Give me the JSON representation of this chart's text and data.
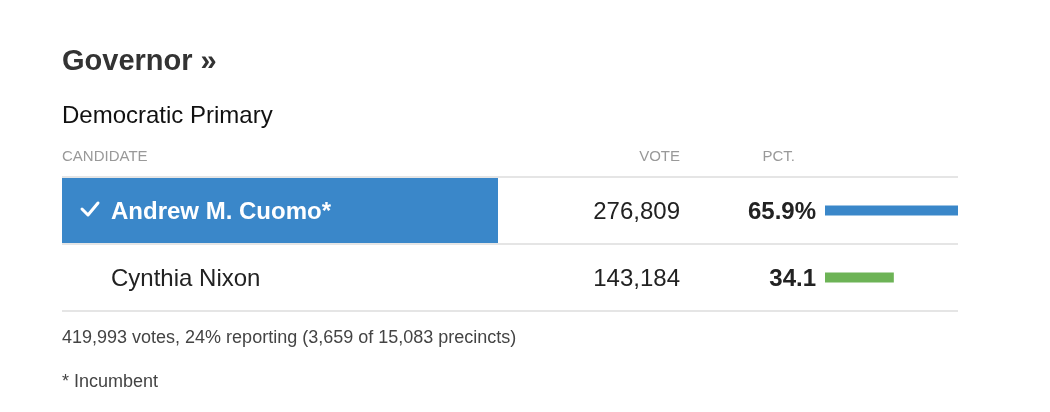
{
  "chart_data": {
    "type": "bar",
    "orientation": "horizontal",
    "title": "Governor »",
    "subtitle": "Democratic Primary",
    "tick_labels": "y",
    "categories": [
      "Andrew M. Cuomo*",
      "Cynthia Nixon"
    ],
    "values": [
      65.9,
      34.1
    ],
    "colors": [
      "#3a87c9",
      "#6db356"
    ],
    "value_labels": [
      "65.9%",
      "34.1"
    ],
    "annotations": [
      "CANDIDATE",
      "VOTE",
      "PCT.",
      "276,809",
      "143,184",
      "419,993 votes, 24% reporting (3,659 of 15,083 precincts)",
      "* Incumbent"
    ]
  }
}
